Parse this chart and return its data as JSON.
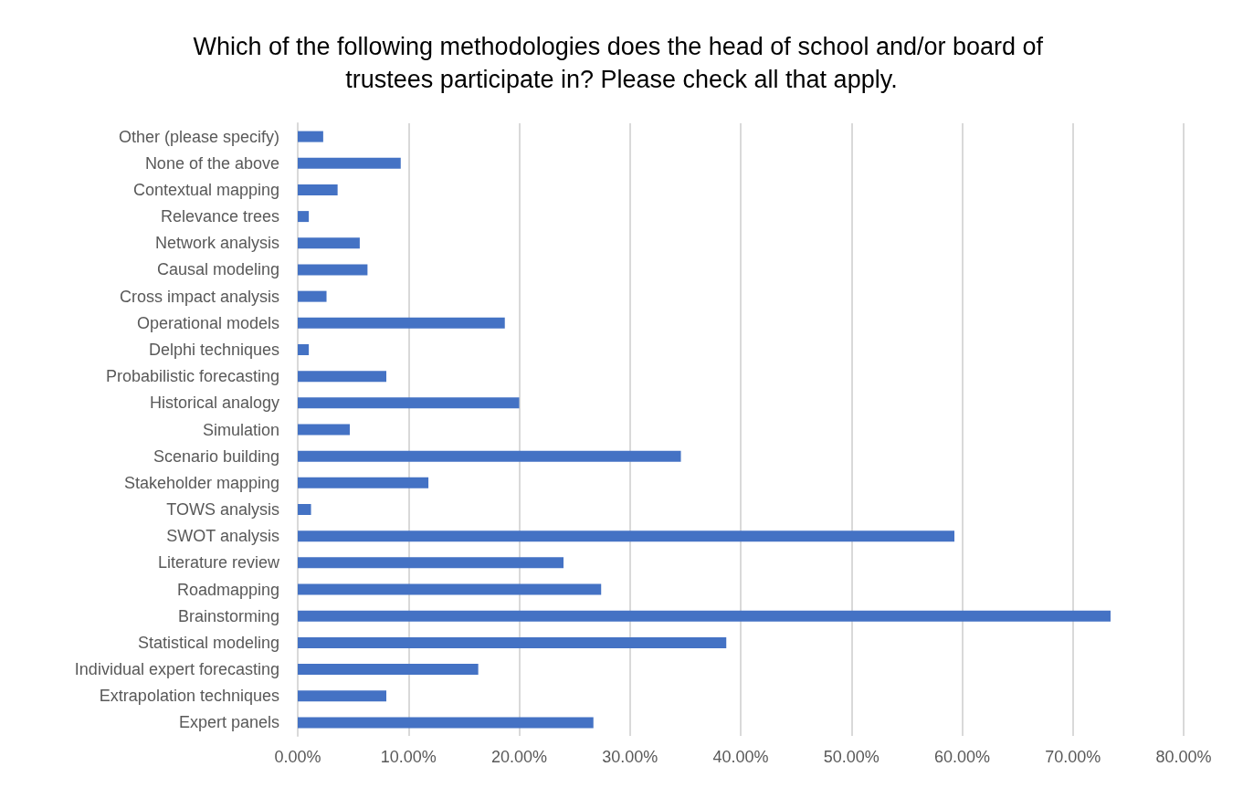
{
  "chart_data": {
    "type": "bar",
    "orientation": "horizontal",
    "title": "Which of the following methodologies does the head of school and/or board of trustees participate in? Please check all that apply.",
    "categories": [
      "Other (please specify)",
      "None of the above",
      "Contextual mapping",
      "Relevance trees",
      "Network analysis",
      "Causal modeling",
      "Cross impact analysis",
      "Operational models",
      "Delphi techniques",
      "Probabilistic forecasting",
      "Historical analogy",
      "Simulation",
      "Scenario building",
      "Stakeholder mapping",
      "TOWS analysis",
      "SWOT analysis",
      "Literature review",
      "Roadmapping",
      "Brainstorming",
      "Statistical modeling",
      "Individual expert forecasting",
      "Extrapolation techniques",
      "Expert panels"
    ],
    "values": [
      2.3,
      9.3,
      3.6,
      1.0,
      5.6,
      6.3,
      2.6,
      18.7,
      1.0,
      8.0,
      20.0,
      4.7,
      34.6,
      11.8,
      1.2,
      59.3,
      24.0,
      27.4,
      73.4,
      38.7,
      16.3,
      8.0,
      26.7
    ],
    "color": "#4472c4",
    "xlim": [
      0,
      80
    ],
    "xticks": [
      {
        "value": 0,
        "label": "0.00%"
      },
      {
        "value": 10,
        "label": "10.00%"
      },
      {
        "value": 20,
        "label": "20.00%"
      },
      {
        "value": 30,
        "label": "30.00%"
      },
      {
        "value": 40,
        "label": "40.00%"
      },
      {
        "value": 50,
        "label": "50.00%"
      },
      {
        "value": 60,
        "label": "60.00%"
      },
      {
        "value": 70,
        "label": "70.00%"
      },
      {
        "value": 80,
        "label": "80.00%"
      }
    ],
    "grid": "x"
  }
}
